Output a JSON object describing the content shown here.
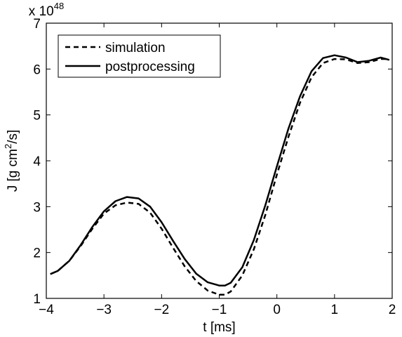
{
  "chart_data": {
    "type": "line",
    "title": "",
    "xlabel": "t [ms]",
    "ylabel_parts": {
      "main": "J [g cm",
      "sup": "2",
      "tail": "/s]"
    },
    "y_multiplier": {
      "base": "x 10",
      "exponent": "48"
    },
    "xlim": [
      -4,
      2
    ],
    "ylim": [
      1,
      7
    ],
    "xticks": [
      -4,
      -3,
      -2,
      -1,
      0,
      1,
      2
    ],
    "xtick_labels": [
      "−4",
      "−3",
      "−2",
      "−1",
      "0",
      "1",
      "2"
    ],
    "yticks": [
      1,
      2,
      3,
      4,
      5,
      6,
      7
    ],
    "ytick_labels": [
      "1",
      "2",
      "3",
      "4",
      "5",
      "6",
      "7"
    ],
    "grid": false,
    "legend_position": "top-left",
    "series": [
      {
        "name": "simulation",
        "style": "dashed",
        "color": "#000000",
        "x": [
          -3.93,
          -3.8,
          -3.6,
          -3.4,
          -3.2,
          -3.0,
          -2.8,
          -2.6,
          -2.4,
          -2.2,
          -2.0,
          -1.8,
          -1.6,
          -1.4,
          -1.2,
          -1.0,
          -0.9,
          -0.8,
          -0.6,
          -0.4,
          -0.2,
          0.0,
          0.2,
          0.4,
          0.6,
          0.8,
          1.0,
          1.2,
          1.4,
          1.6,
          1.8,
          1.95
        ],
        "y": [
          1.53,
          1.6,
          1.82,
          2.15,
          2.52,
          2.85,
          3.03,
          3.09,
          3.06,
          2.87,
          2.52,
          2.1,
          1.7,
          1.38,
          1.17,
          1.08,
          1.08,
          1.15,
          1.5,
          2.07,
          2.82,
          3.7,
          4.52,
          5.26,
          5.82,
          6.13,
          6.22,
          6.21,
          6.13,
          6.15,
          6.22,
          6.22
        ]
      },
      {
        "name": "postprocessing",
        "style": "solid",
        "color": "#000000",
        "x": [
          -3.93,
          -3.8,
          -3.6,
          -3.4,
          -3.2,
          -3.0,
          -2.8,
          -2.6,
          -2.4,
          -2.2,
          -2.0,
          -1.8,
          -1.6,
          -1.4,
          -1.2,
          -1.0,
          -0.9,
          -0.8,
          -0.6,
          -0.4,
          -0.2,
          0.0,
          0.2,
          0.4,
          0.6,
          0.8,
          1.0,
          1.2,
          1.4,
          1.6,
          1.8,
          1.95
        ],
        "y": [
          1.53,
          1.6,
          1.82,
          2.17,
          2.56,
          2.9,
          3.12,
          3.21,
          3.18,
          3.0,
          2.66,
          2.25,
          1.86,
          1.54,
          1.35,
          1.28,
          1.28,
          1.34,
          1.68,
          2.27,
          3.03,
          3.88,
          4.7,
          5.4,
          5.95,
          6.24,
          6.3,
          6.25,
          6.15,
          6.18,
          6.25,
          6.2
        ]
      }
    ]
  }
}
